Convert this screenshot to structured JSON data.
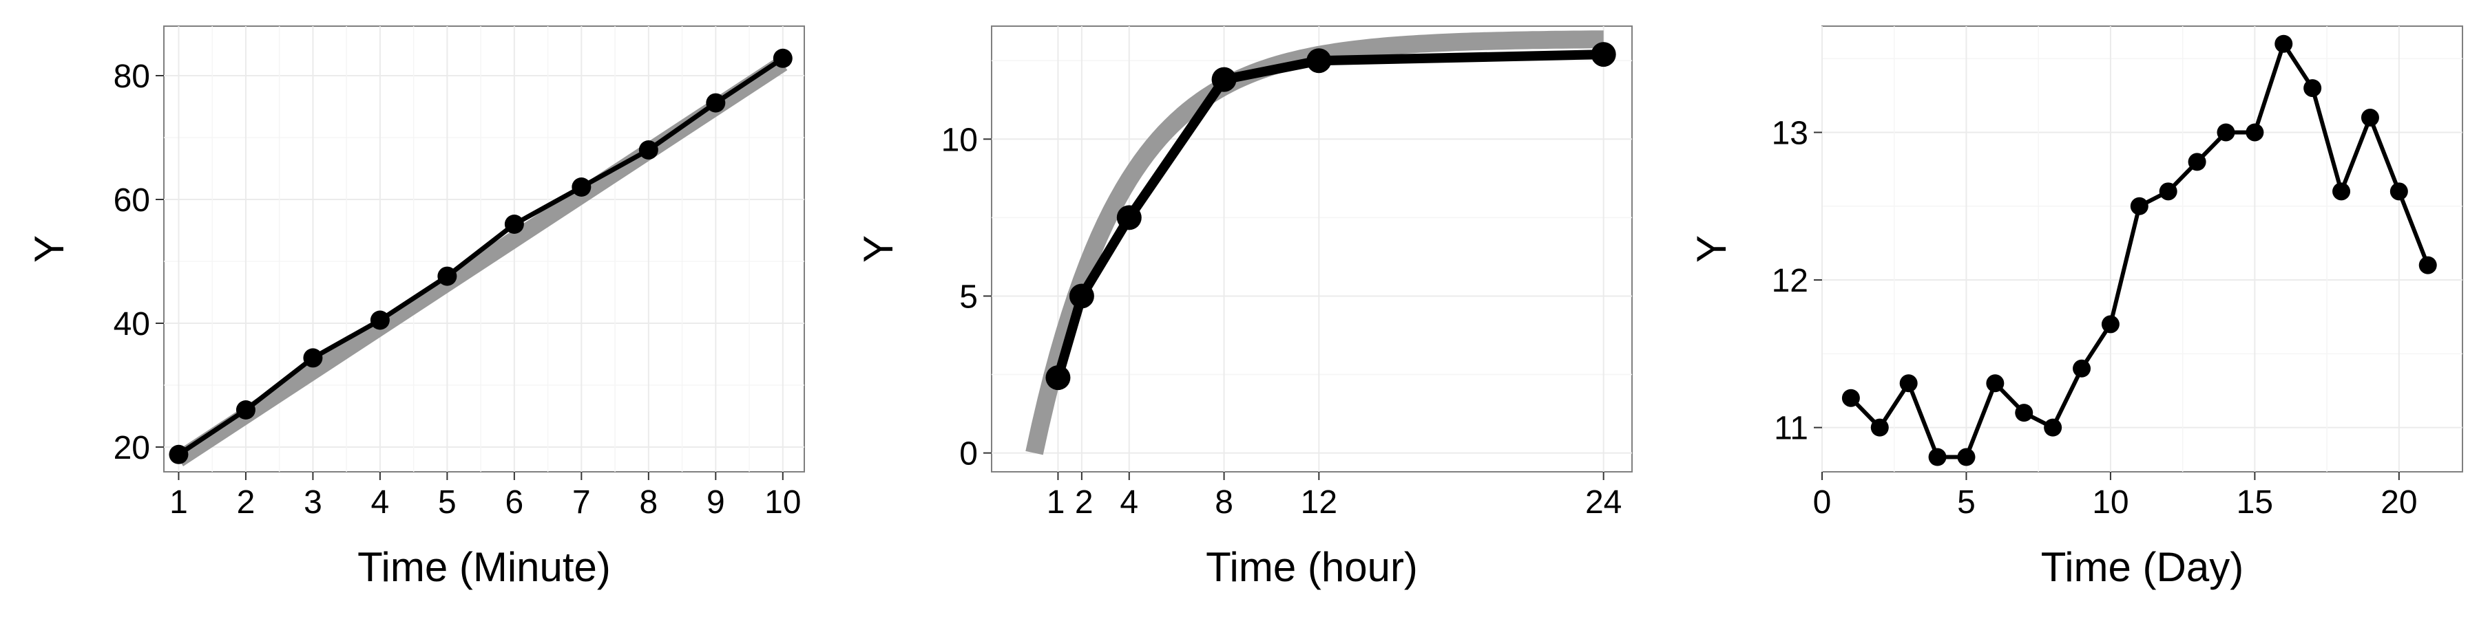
{
  "chart_data": [
    {
      "type": "line",
      "xlabel": "Time (Minute)",
      "ylabel": "Y",
      "x": [
        1,
        2,
        3,
        4,
        5,
        6,
        7,
        8,
        9,
        10
      ],
      "series": [
        {
          "values": [
            18.8,
            26.0,
            34.4,
            40.5,
            47.6,
            56.0,
            62.0,
            68.0,
            75.6,
            82.8
          ],
          "color": "#000000"
        }
      ],
      "fit_band": {
        "color": "#999999",
        "x": [
          1,
          10
        ],
        "y": [
          18.0,
          82.0
        ]
      },
      "xlim": [
        0.78,
        10.32
      ],
      "ylim": [
        16,
        88
      ],
      "xticks": [
        1,
        2,
        3,
        4,
        5,
        6,
        7,
        8,
        9,
        10
      ],
      "yticks": [
        20,
        40,
        60,
        80
      ],
      "grid": true,
      "legend": "none"
    },
    {
      "type": "line",
      "xlabel": "Time (hour)",
      "ylabel": "Y",
      "x": [
        1,
        2,
        4,
        8,
        12,
        24
      ],
      "series": [
        {
          "values": [
            2.4,
            5.0,
            7.5,
            11.9,
            12.5,
            12.7
          ],
          "color": "#000000"
        }
      ],
      "fit_band": {
        "color": "#999999",
        "model": "asymptotic",
        "x": [
          0,
          24
        ],
        "y_asymptote": 13.2,
        "y_start": 0.0
      },
      "xlim": [
        -1.8,
        25.2
      ],
      "ylim": [
        -0.6,
        13.6
      ],
      "xticks": [
        1,
        2,
        4,
        8,
        12,
        24
      ],
      "xtick_labels": [
        "1",
        "2",
        "4",
        "8",
        "12",
        "24"
      ],
      "yticks": [
        0,
        5,
        10
      ],
      "grid": true,
      "legend": "none"
    },
    {
      "type": "line",
      "xlabel": "Time (Day)",
      "ylabel": "Y",
      "x": [
        1,
        2,
        3,
        4,
        5,
        6,
        7,
        8,
        9,
        10,
        11,
        12,
        13,
        14,
        15,
        16,
        17,
        18,
        19,
        20,
        21
      ],
      "series": [
        {
          "values": [
            11.2,
            11.0,
            11.3,
            10.8,
            10.8,
            11.3,
            11.1,
            11.0,
            11.4,
            11.7,
            12.5,
            12.6,
            12.8,
            13.0,
            13.0,
            13.6,
            13.3,
            12.6,
            13.1,
            12.6,
            12.1
          ],
          "color": "#000000"
        }
      ],
      "xlim": [
        0,
        22.2
      ],
      "ylim": [
        10.7,
        13.72
      ],
      "xticks": [
        0,
        5,
        10,
        15,
        20
      ],
      "yticks": [
        11,
        12,
        13
      ],
      "grid": true,
      "legend": "none"
    }
  ]
}
